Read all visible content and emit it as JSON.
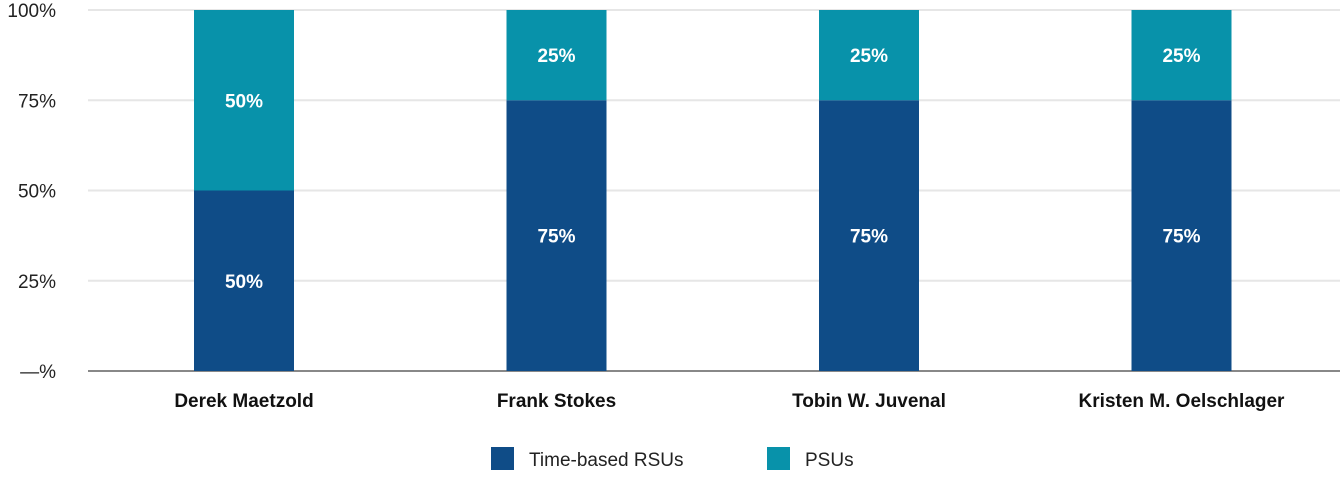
{
  "chart_data": {
    "type": "bar",
    "stacked": true,
    "categories": [
      "Derek Maetzold",
      "Frank Stokes",
      "Tobin W. Juvenal",
      "Kristen M. Oelschlager"
    ],
    "series": [
      {
        "name": "Time-based RSUs",
        "values": [
          50,
          75,
          75,
          75
        ],
        "labels": [
          "50%",
          "75%",
          "75%",
          "75%"
        ],
        "color": "#0f4c87"
      },
      {
        "name": "PSUs",
        "values": [
          50,
          25,
          25,
          25
        ],
        "labels": [
          "50%",
          "25%",
          "25%",
          "25%"
        ],
        "color": "#0892aa"
      }
    ],
    "ylim": [
      0,
      100
    ],
    "yticks": [
      {
        "value": 0,
        "label": "—%"
      },
      {
        "value": 25,
        "label": "25%"
      },
      {
        "value": 50,
        "label": "50%"
      },
      {
        "value": 75,
        "label": "75%"
      },
      {
        "value": 100,
        "label": "100%"
      }
    ],
    "grid": true,
    "legend_position": "bottom-center",
    "gridline_color": "#e6e6e6",
    "axis_color": "#888888"
  }
}
